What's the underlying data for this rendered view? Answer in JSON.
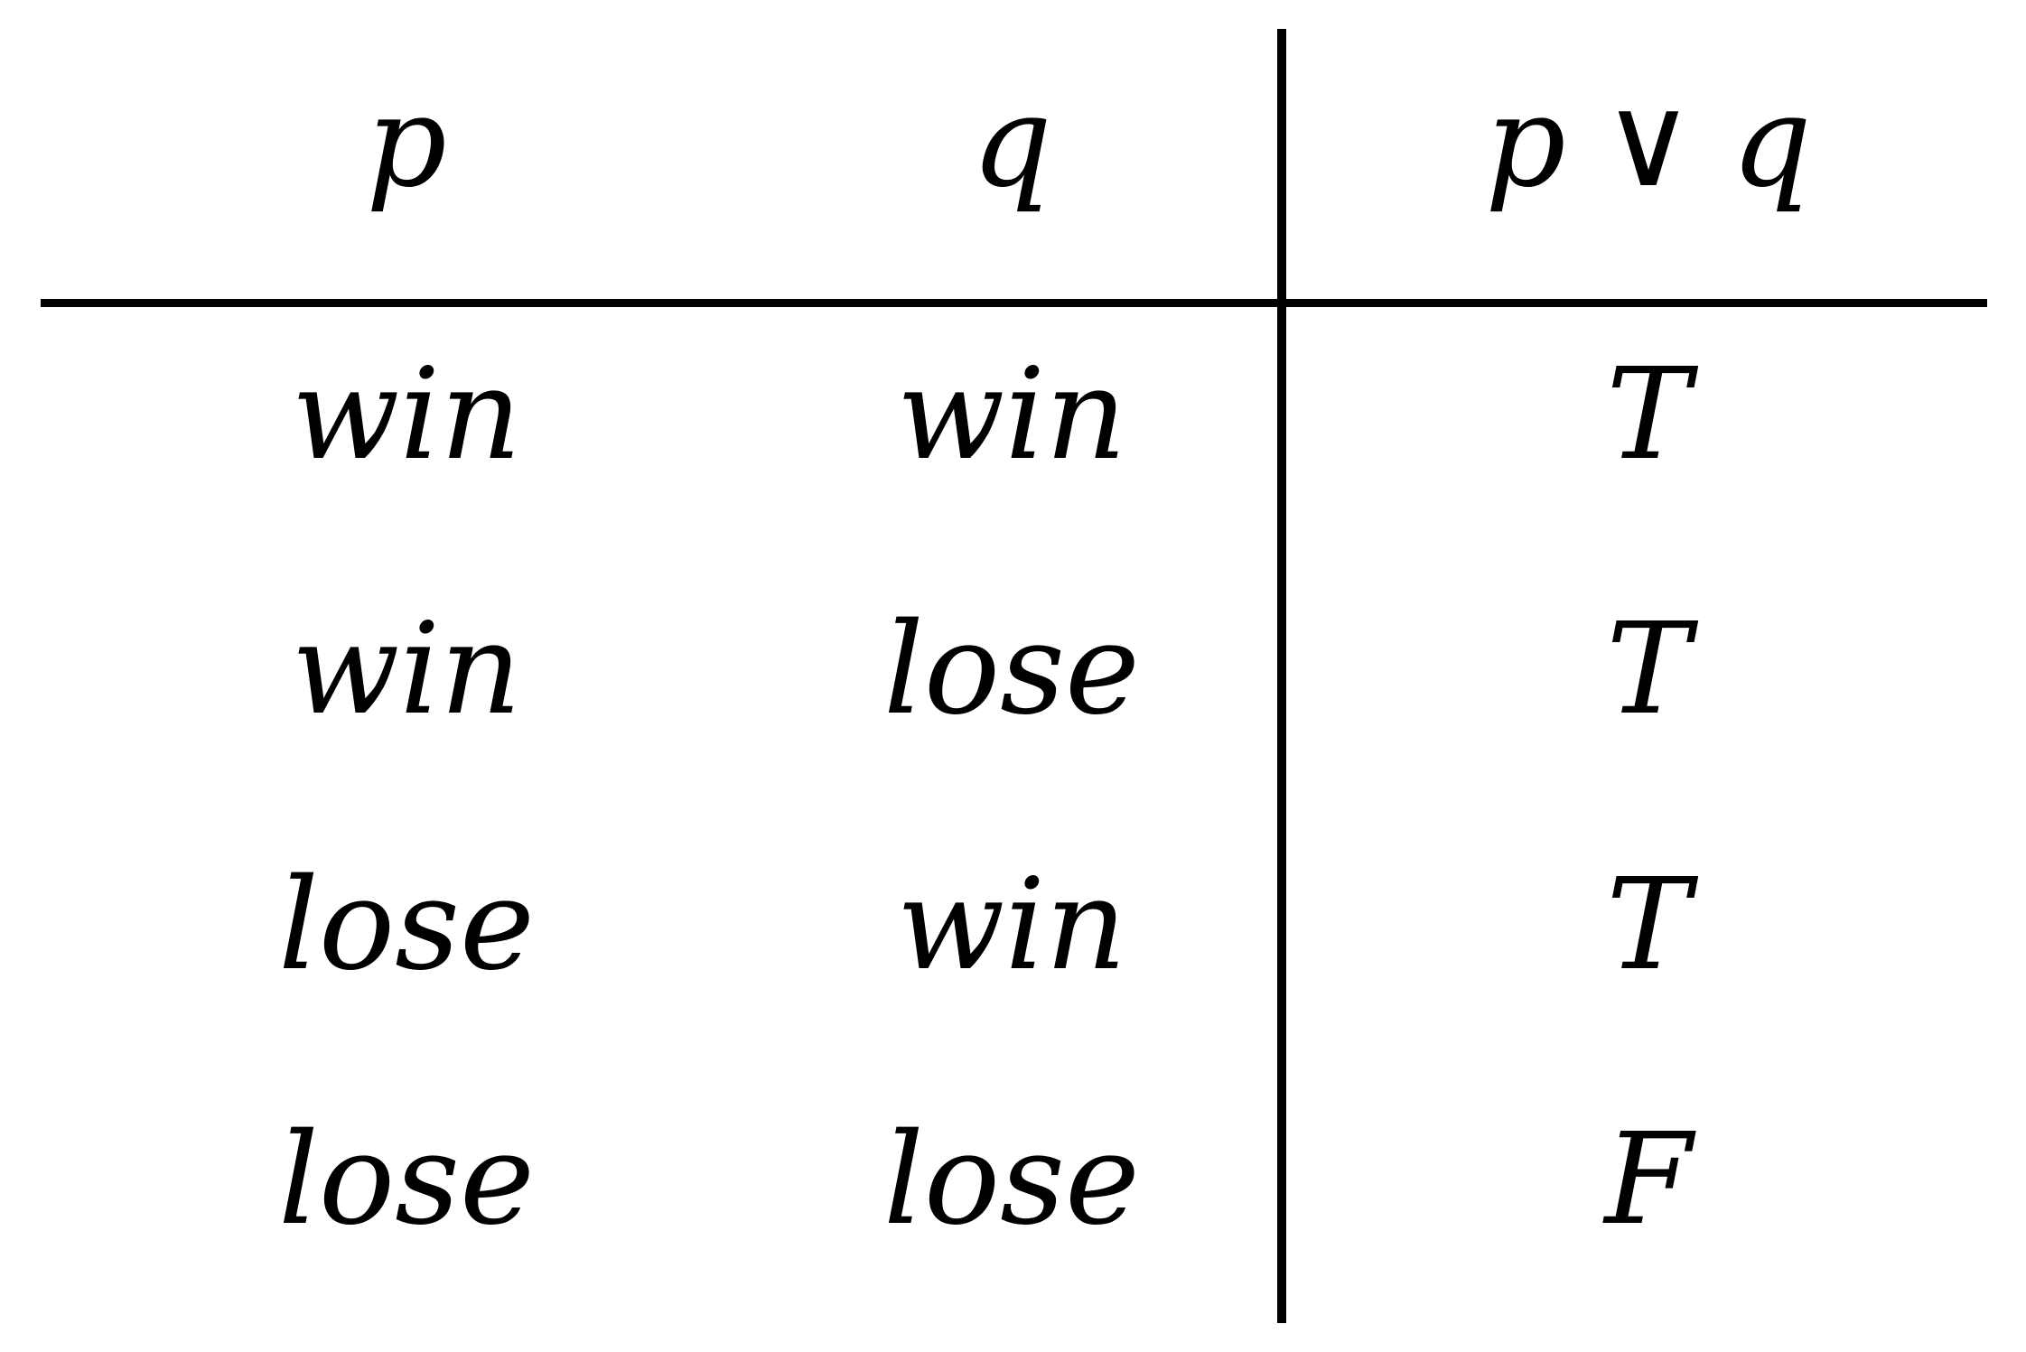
{
  "header": {
    "p": "p",
    "q": "q",
    "result_left": "p",
    "result_op": "∨",
    "result_right": "q"
  },
  "rows": [
    {
      "p": "win",
      "q": "win",
      "result": "T"
    },
    {
      "p": "win",
      "q": "lose",
      "result": "T"
    },
    {
      "p": "lose",
      "q": "win",
      "result": "T"
    },
    {
      "p": "lose",
      "q": "lose",
      "result": "F"
    }
  ]
}
